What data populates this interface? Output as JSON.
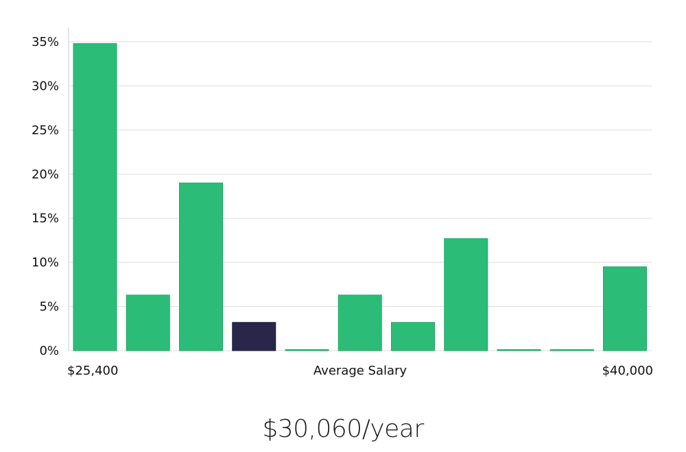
{
  "chart_data": {
    "type": "bar",
    "xlabel": "Average Salary",
    "x_min_label": "$25,400",
    "x_max_label": "$40,000",
    "y_tick_labels": [
      "0%",
      "5%",
      "10%",
      "15%",
      "20%",
      "25%",
      "30%",
      "35%"
    ],
    "ylim": [
      0,
      35
    ],
    "grid": true,
    "values": [
      34.8,
      6.3,
      19.0,
      3.2,
      0.0,
      6.3,
      3.2,
      12.7,
      0.0,
      0.0,
      9.5
    ],
    "highlight_index": 3,
    "colors": {
      "bar": "#2bbd77",
      "bar_edge": "#22a866",
      "highlight": "#29264a",
      "grid": "#dddddd",
      "axis": "#cccccc"
    }
  },
  "salary": {
    "label": "$30,060/year"
  }
}
